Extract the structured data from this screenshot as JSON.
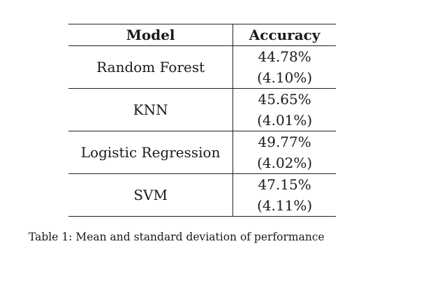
{
  "table": {
    "headers": {
      "model": "Model",
      "accuracy": "Accuracy"
    },
    "rows": [
      {
        "model": "Random Forest",
        "mean": "44.78%",
        "std": "(4.10%)"
      },
      {
        "model": "KNN",
        "mean": "45.65%",
        "std": "(4.01%)"
      },
      {
        "model": "Logistic Regression",
        "mean": "49.77%",
        "std": "(4.02%)"
      },
      {
        "model": "SVM",
        "mean": "47.15%",
        "std": "(4.11%)"
      }
    ]
  },
  "caption": "Table 1: Mean and standard deviation of performance"
}
